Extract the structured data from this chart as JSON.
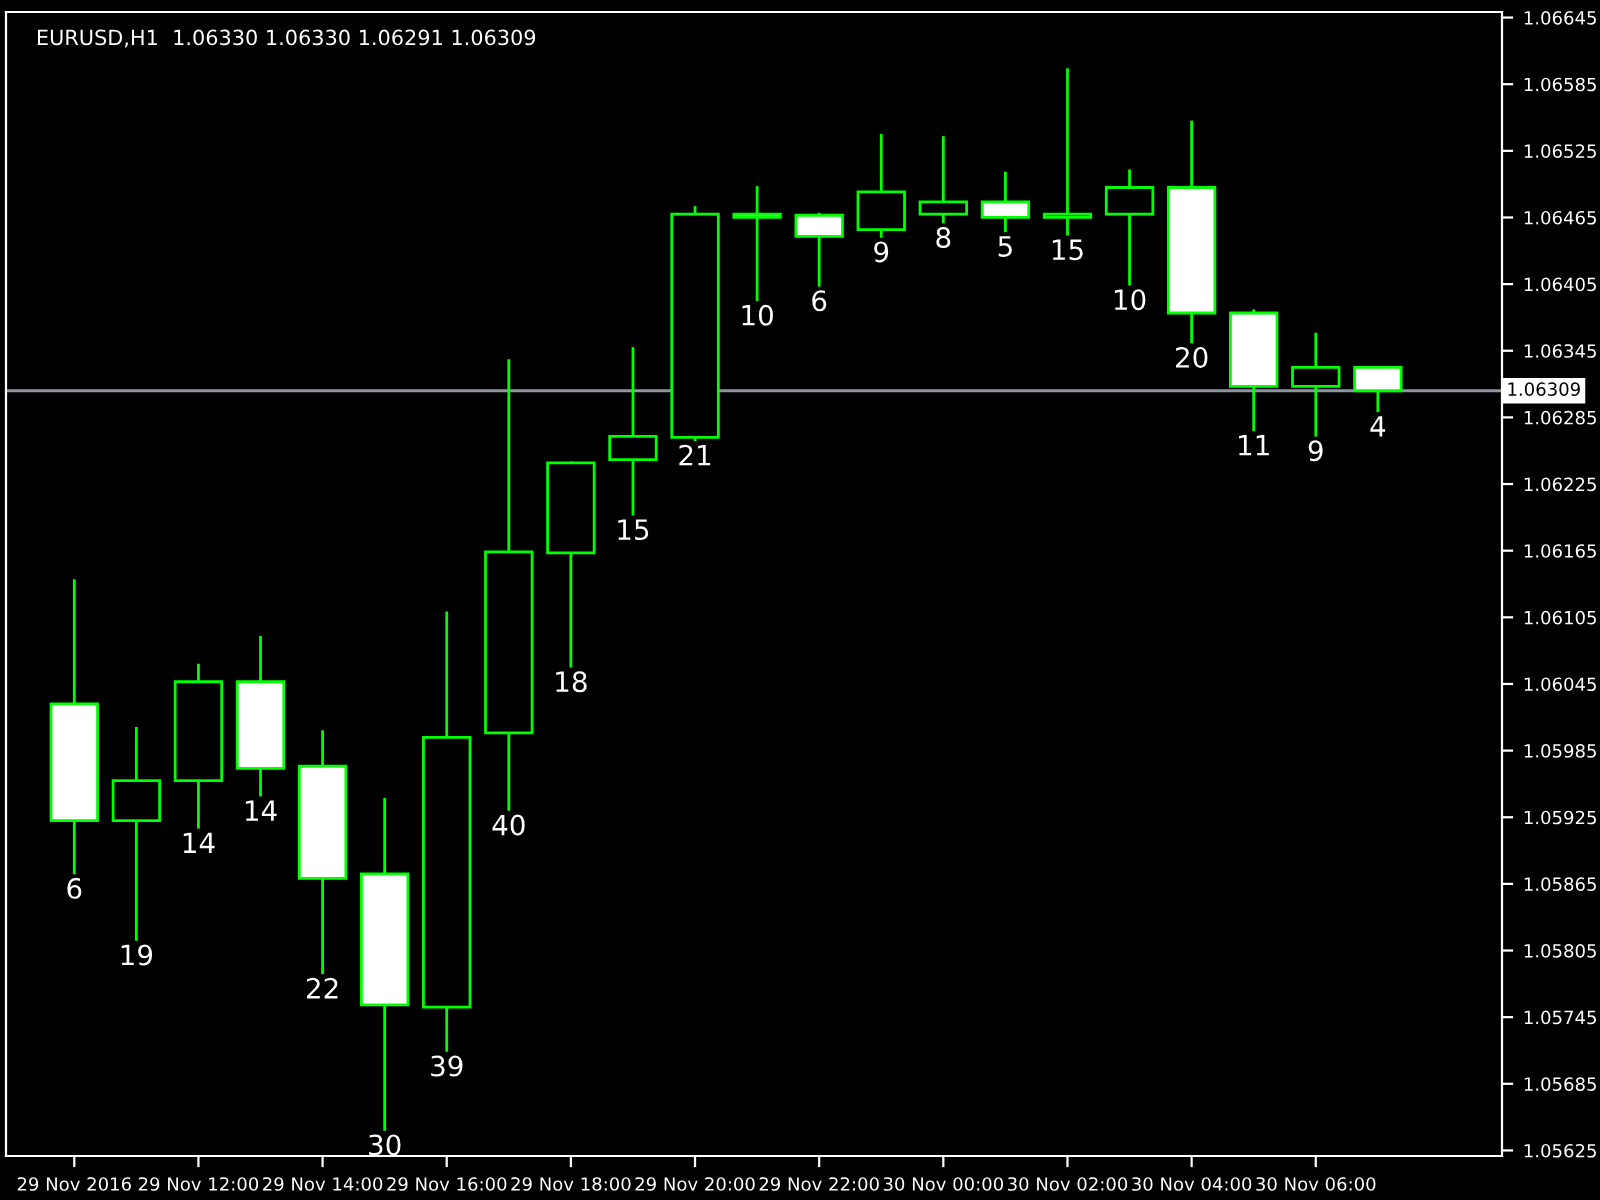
{
  "chart_data": {
    "type": "candlestick",
    "title": "EURUSD,H1  1.06330 1.06330 1.06291 1.06309",
    "categories": [
      "29 Nov 2016",
      null,
      "29 Nov 12:00",
      null,
      "29 Nov 14:00",
      null,
      "29 Nov 16:00",
      null,
      "29 Nov 18:00",
      null,
      "29 Nov 20:00",
      null,
      "29 Nov 22:00",
      null,
      "30 Nov 00:00",
      null,
      "30 Nov 02:00",
      null,
      "30 Nov 04:00",
      null,
      "30 Nov 06:00",
      null
    ],
    "ohlc": [
      [
        1.06027,
        1.06138,
        1.05875,
        1.05922
      ],
      [
        1.05922,
        1.06005,
        1.05815,
        1.05958
      ],
      [
        1.05958,
        1.06062,
        1.05916,
        1.06047
      ],
      [
        1.06047,
        1.06087,
        1.05945,
        1.05969
      ],
      [
        1.05971,
        1.06002,
        1.05785,
        1.0587
      ],
      [
        1.05874,
        1.05941,
        1.05644,
        1.05756
      ],
      [
        1.05754,
        1.06109,
        1.05715,
        1.05997
      ],
      [
        1.06001,
        1.06336,
        1.05932,
        1.06164
      ],
      [
        1.06163,
        1.06244,
        1.06061,
        1.06244
      ],
      [
        1.06247,
        1.06347,
        1.06198,
        1.06268
      ],
      [
        1.06267,
        1.06474,
        1.06265,
        1.06468
      ],
      [
        1.06468,
        1.06492,
        1.06391,
        1.06465
      ],
      [
        1.06467,
        1.06468,
        1.06404,
        1.06448
      ],
      [
        1.06454,
        1.06539,
        1.06448,
        1.06488
      ],
      [
        1.06468,
        1.06537,
        1.06461,
        1.06479
      ],
      [
        1.06479,
        1.06505,
        1.06453,
        1.06465
      ],
      [
        1.06465,
        1.06598,
        1.0645,
        1.06468
      ],
      [
        1.06468,
        1.06507,
        1.06405,
        1.06492
      ],
      [
        1.06492,
        1.06551,
        1.06353,
        1.06379
      ],
      [
        1.06379,
        1.06381,
        1.06274,
        1.06313
      ],
      [
        1.06313,
        1.0636,
        1.06269,
        1.0633
      ],
      [
        1.0633,
        1.0633,
        1.06291,
        1.06309
      ]
    ],
    "color": "#00ff00",
    "colors": [
      "#ffffff",
      "#000000",
      "#000000",
      "#ffffff",
      "#ffffff",
      "#ffffff",
      "#000000",
      "#000000",
      "#000000",
      "#000000",
      "#000000",
      "#ffffff",
      "#ffffff",
      "#000000",
      "#000000",
      "#ffffff",
      "#000000",
      "#000000",
      "#ffffff",
      "#ffffff",
      "#000000",
      "#ffffff"
    ],
    "value_labels": [
      "6",
      "19",
      "14",
      "14",
      "22",
      "30",
      "39",
      "40",
      "18",
      "15",
      "21",
      "10",
      "6",
      "9",
      "8",
      "5",
      "15",
      "10",
      "20",
      "11",
      "9",
      "4"
    ],
    "ylim": [
      1.0562,
      1.0665
    ],
    "yticks": [
      1.06645,
      1.06585,
      1.06525,
      1.06465,
      1.06405,
      1.06345,
      1.06285,
      1.06225,
      1.06165,
      1.06105,
      1.06045,
      1.05985,
      1.05925,
      1.05865,
      1.05805,
      1.05745,
      1.05685,
      1.05625
    ],
    "ref_lines": [
      {
        "axis": "y",
        "value": 1.06309,
        "label": "1.06309",
        "color": "#8c96a0"
      }
    ],
    "grid": false
  }
}
